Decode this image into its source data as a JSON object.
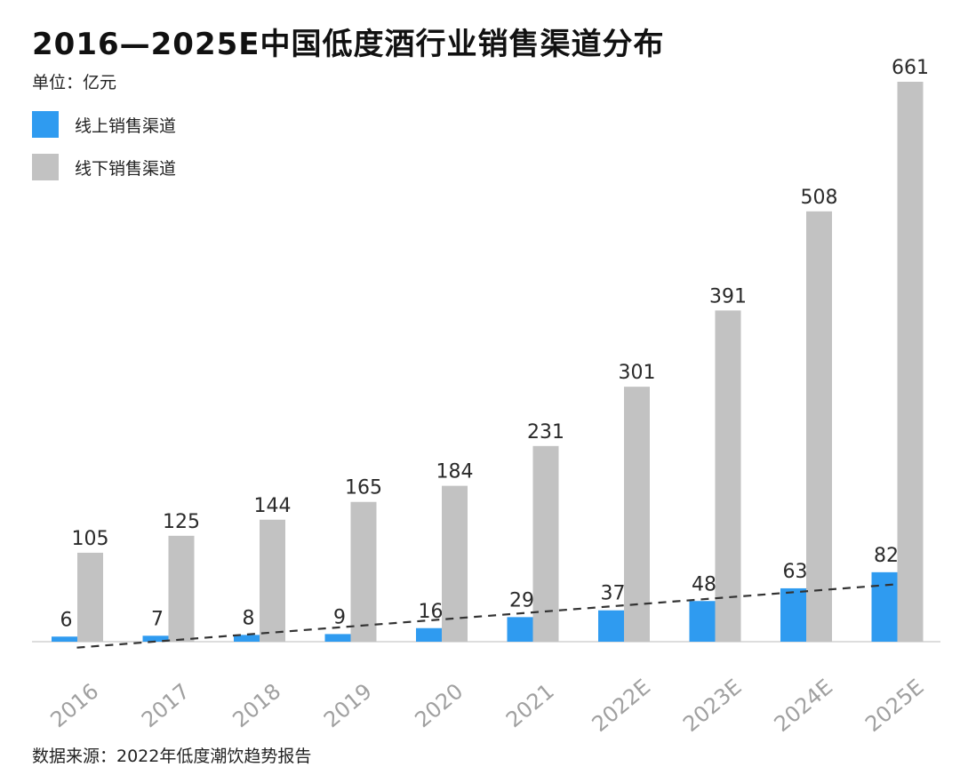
{
  "title": "2016—2025E中国低度酒行业销售渠道分布",
  "unit": "单位：亿元",
  "source": "数据来源：2022年低度潮饮趋势报告",
  "colors": {
    "online": "#2f9bf0",
    "offline": "#c2c2c2",
    "trend": "#333333",
    "axis": "#dddddd"
  },
  "chart_data": {
    "type": "bar",
    "title": "2016—2025E中国低度酒行业销售渠道分布",
    "unit": "单位：亿元",
    "categories": [
      "2016",
      "2017",
      "2018",
      "2019",
      "2020",
      "2021",
      "2022E",
      "2023E",
      "2024E",
      "2025E"
    ],
    "series": [
      {
        "name": "线上销售渠道",
        "values": [
          6,
          7,
          8,
          9,
          16,
          29,
          37,
          48,
          63,
          82
        ]
      },
      {
        "name": "线下销售渠道",
        "values": [
          105,
          125,
          144,
          165,
          184,
          231,
          301,
          391,
          508,
          661
        ]
      }
    ],
    "trendline": {
      "series": "线上销售渠道",
      "style": "dashed",
      "start_value": -7,
      "end_value": 68
    },
    "ylim": [
      0,
      661
    ],
    "grid": false,
    "legend_position": "top-left",
    "data_labels": true
  }
}
